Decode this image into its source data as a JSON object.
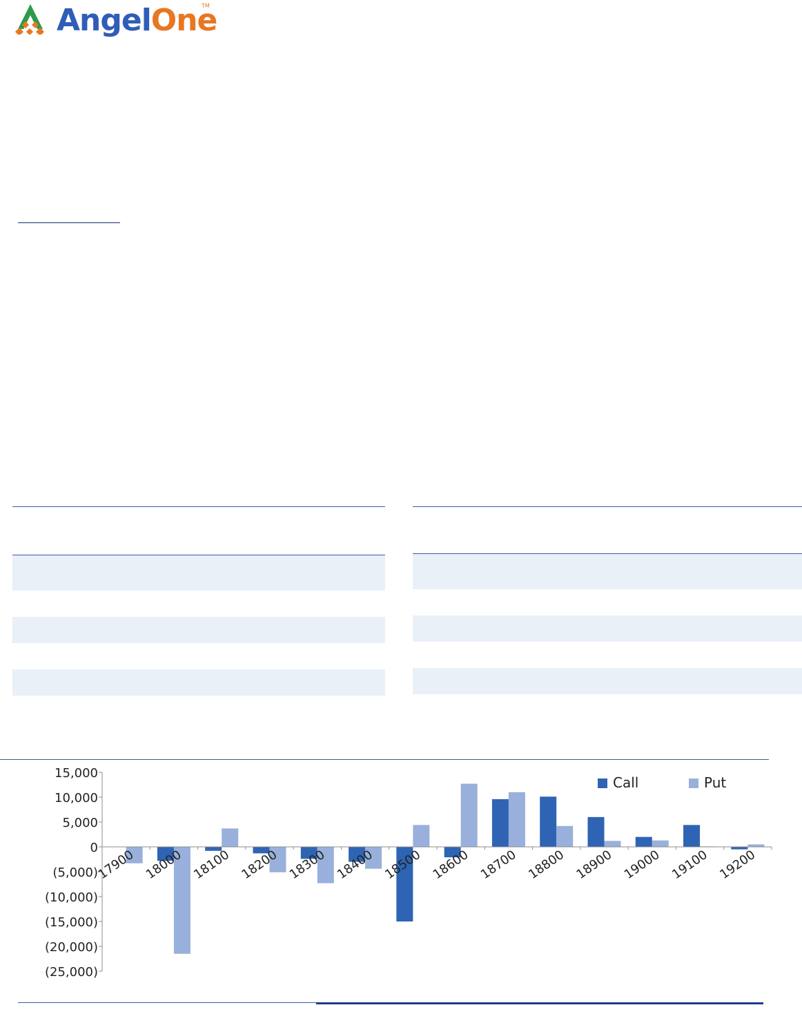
{
  "brand": {
    "name_part1": "Angel",
    "name_part2": "One",
    "tm": "TM",
    "color_part1": "#2f5db8",
    "color_part2": "#e87722",
    "mark_color": "#2e9a4a"
  },
  "chart_data": {
    "type": "bar",
    "categories": [
      "17900",
      "18000",
      "18100",
      "18200",
      "18300",
      "18400",
      "18500",
      "18600",
      "18700",
      "18800",
      "18900",
      "19000",
      "19100",
      "19200"
    ],
    "series": [
      {
        "name": "Call",
        "color": "#2e64b3",
        "values": [
          0,
          -2800,
          -800,
          -1300,
          -2400,
          -3000,
          -15000,
          -2100,
          9600,
          10100,
          6000,
          2000,
          4400,
          -500
        ]
      },
      {
        "name": "Put",
        "color": "#99b0dc",
        "values": [
          -3300,
          -21500,
          3700,
          -5100,
          -7300,
          -4400,
          4400,
          12700,
          11000,
          4200,
          1200,
          1300,
          100,
          500
        ]
      }
    ],
    "ylim": [
      -25000,
      15000
    ],
    "yticks": [
      15000,
      10000,
      5000,
      0,
      -5000,
      -10000,
      -15000,
      -20000,
      -25000
    ],
    "ytick_labels": [
      "15,000",
      "10,000",
      "5,000",
      "0",
      "(5,000)",
      "(10,000)",
      "(15,000)",
      "(20,000)",
      "(25,000)"
    ],
    "legend": {
      "position": "top-right",
      "labels": [
        "Call",
        "Put"
      ]
    },
    "grid": false,
    "title": "",
    "xlabel": "",
    "ylabel": ""
  }
}
